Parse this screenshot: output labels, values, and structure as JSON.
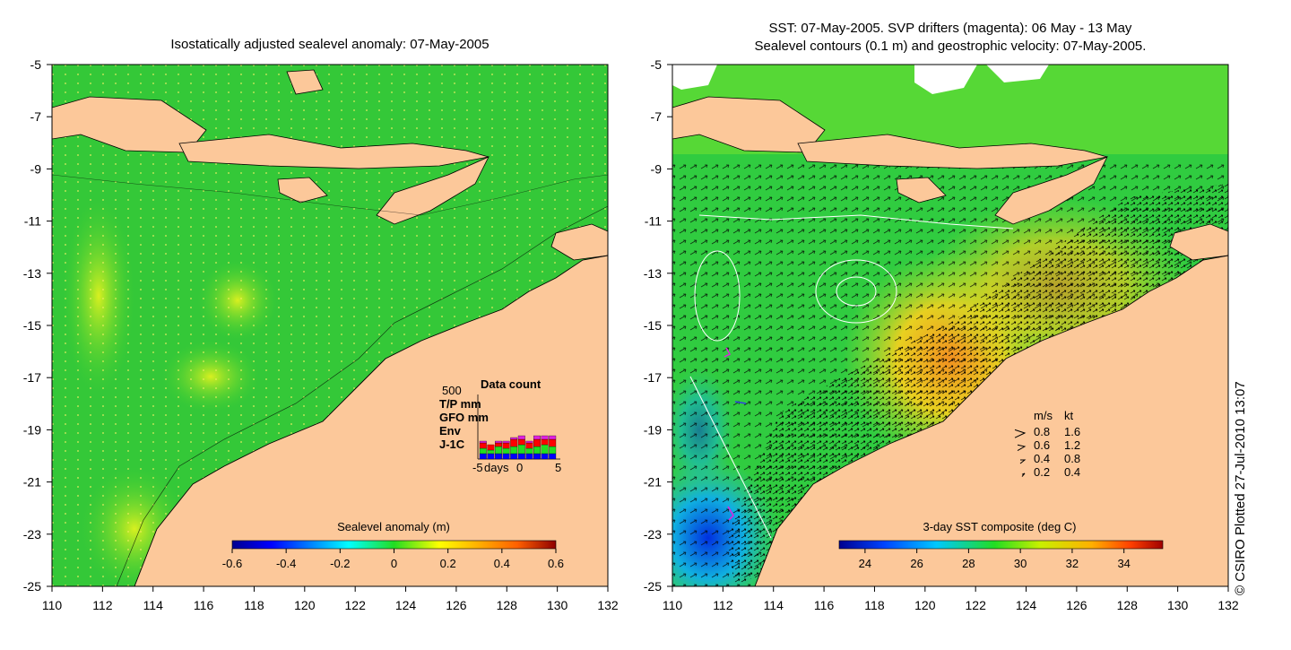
{
  "left_map": {
    "title": "Isostatically adjusted sealevel anomaly: 07-May-2005",
    "x_ticks": [
      "110",
      "112",
      "114",
      "116",
      "118",
      "120",
      "122",
      "124",
      "126",
      "128",
      "130",
      "132"
    ],
    "y_ticks": [
      "-5",
      "-7",
      "-9",
      "-11",
      "-13",
      "-15",
      "-17",
      "-19",
      "-21",
      "-23",
      "-25"
    ],
    "colorbar": {
      "title": "Sealevel anomaly (m)",
      "ticks": [
        "-0.6",
        "-0.4",
        "-0.2",
        "0",
        "0.2",
        "0.4",
        "0.6"
      ],
      "range": [
        -0.6,
        0.6
      ]
    },
    "data_count": {
      "title": "Data count",
      "max_label": "500",
      "series": [
        {
          "name": "T/P mm",
          "color": "#e020e0"
        },
        {
          "name": "GFO mm",
          "color": "#ff0000"
        },
        {
          "name": "Env",
          "color": "#22dd22"
        },
        {
          "name": "J-1C",
          "color": "#0000ff"
        }
      ],
      "x_axis_label": "days",
      "x_ticks": [
        "-5",
        "0",
        "5"
      ]
    }
  },
  "right_map": {
    "title_line1": "SST: 07-May-2005. SVP drifters (magenta): 06 May - 13 May",
    "title_line2": "Sealevel contours (0.1 m) and geostrophic velocity: 07-May-2005.",
    "x_ticks": [
      "110",
      "112",
      "114",
      "116",
      "118",
      "120",
      "122",
      "124",
      "126",
      "128",
      "130",
      "132"
    ],
    "y_ticks": [
      "-5",
      "-7",
      "-9",
      "-11",
      "-13",
      "-15",
      "-17",
      "-19",
      "-21",
      "-23",
      "-25"
    ],
    "colorbar": {
      "title": "3-day SST composite (deg C)",
      "ticks": [
        "24",
        "26",
        "28",
        "30",
        "32",
        "34"
      ],
      "range": [
        23,
        35.5
      ]
    },
    "velocity_legend": {
      "header_ms": "m/s",
      "header_kt": "kt",
      "rows": [
        {
          "ms": "0.8",
          "kt": "1.6"
        },
        {
          "ms": "0.6",
          "kt": "1.2"
        },
        {
          "ms": "0.4",
          "kt": "0.8"
        },
        {
          "ms": "0.2",
          "kt": "0.4"
        }
      ]
    }
  },
  "credit": "© CSIRO Plotted 27-Jul-2010 13:07",
  "colors": {
    "land": "#fcc89a",
    "ocean_base": "#3cc83c",
    "ocean_mid": "#22dd22"
  }
}
